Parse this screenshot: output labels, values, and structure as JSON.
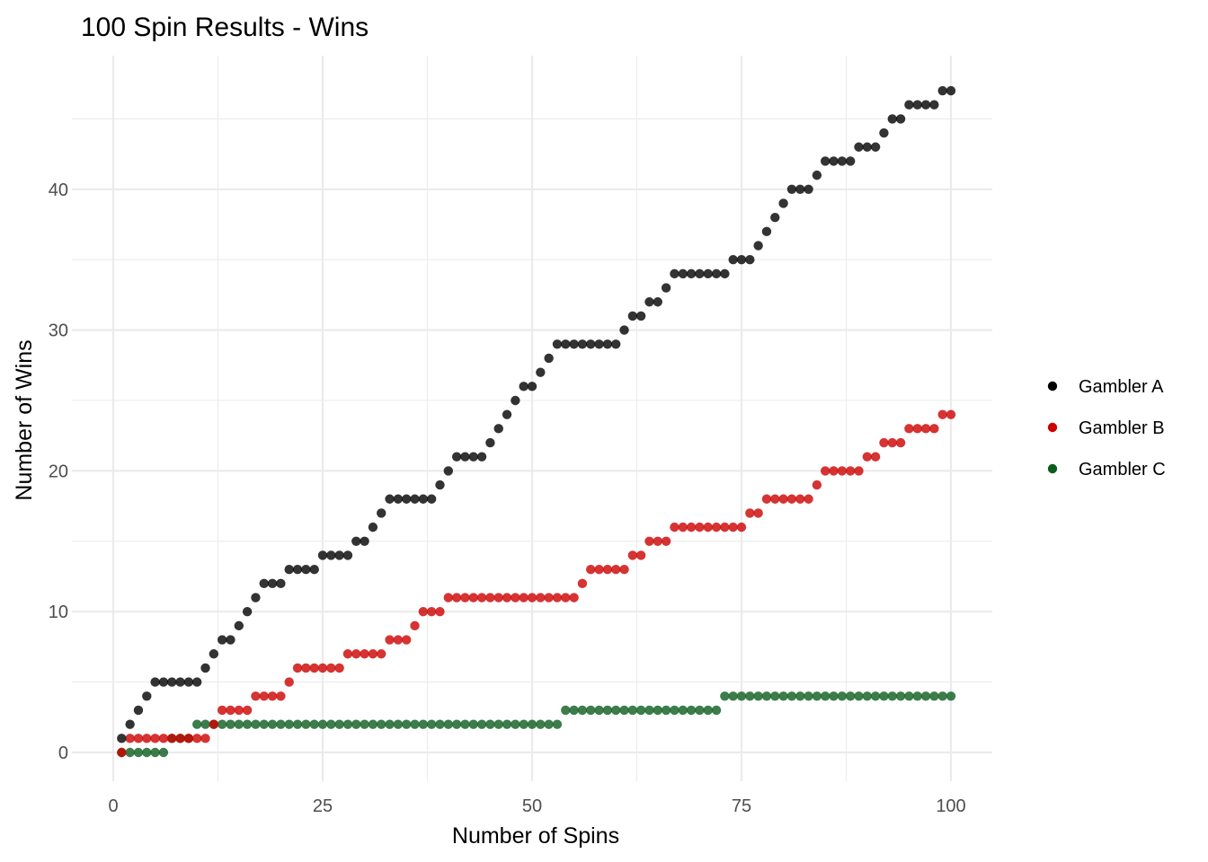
{
  "chart_data": {
    "type": "scatter",
    "title": "100 Spin Results - Wins",
    "xlabel": "Number of Spins",
    "ylabel": "Number of Wins",
    "xlim": [
      0,
      100
    ],
    "ylim": [
      0,
      47
    ],
    "x_ticks": [
      0,
      25,
      50,
      75,
      100
    ],
    "y_ticks": [
      0,
      10,
      20,
      30,
      40
    ],
    "grid": true,
    "legend": "right",
    "x": [
      1,
      2,
      3,
      4,
      5,
      6,
      7,
      8,
      9,
      10,
      11,
      12,
      13,
      14,
      15,
      16,
      17,
      18,
      19,
      20,
      21,
      22,
      23,
      24,
      25,
      26,
      27,
      28,
      29,
      30,
      31,
      32,
      33,
      34,
      35,
      36,
      37,
      38,
      39,
      40,
      41,
      42,
      43,
      44,
      45,
      46,
      47,
      48,
      49,
      50,
      51,
      52,
      53,
      54,
      55,
      56,
      57,
      58,
      59,
      60,
      61,
      62,
      63,
      64,
      65,
      66,
      67,
      68,
      69,
      70,
      71,
      72,
      73,
      74,
      75,
      76,
      77,
      78,
      79,
      80,
      81,
      82,
      83,
      84,
      85,
      86,
      87,
      88,
      89,
      90,
      91,
      92,
      93,
      94,
      95,
      96,
      97,
      98,
      99,
      100
    ],
    "series": [
      {
        "name": "Gambler A",
        "color": "#000000",
        "values": [
          1,
          2,
          3,
          4,
          5,
          5,
          5,
          5,
          5,
          5,
          6,
          7,
          8,
          8,
          9,
          10,
          11,
          12,
          12,
          12,
          13,
          13,
          13,
          13,
          14,
          14,
          14,
          14,
          15,
          15,
          16,
          17,
          18,
          18,
          18,
          18,
          18,
          18,
          19,
          20,
          21,
          21,
          21,
          21,
          22,
          23,
          24,
          25,
          26,
          26,
          27,
          28,
          29,
          29,
          29,
          29,
          29,
          29,
          29,
          29,
          30,
          31,
          31,
          32,
          32,
          33,
          34,
          34,
          34,
          34,
          34,
          34,
          34,
          35,
          35,
          35,
          36,
          37,
          38,
          39,
          40,
          40,
          40,
          41,
          42,
          42,
          42,
          42,
          43,
          43,
          43,
          44,
          45,
          45,
          46,
          46,
          46,
          46,
          47,
          47
        ]
      },
      {
        "name": "Gambler B",
        "color": "#cc0000",
        "values": [
          0,
          1,
          1,
          1,
          1,
          1,
          1,
          1,
          1,
          1,
          1,
          2,
          3,
          3,
          3,
          3,
          4,
          4,
          4,
          4,
          5,
          6,
          6,
          6,
          6,
          6,
          6,
          7,
          7,
          7,
          7,
          7,
          8,
          8,
          8,
          9,
          10,
          10,
          10,
          11,
          11,
          11,
          11,
          11,
          11,
          11,
          11,
          11,
          11,
          11,
          11,
          11,
          11,
          11,
          11,
          12,
          13,
          13,
          13,
          13,
          13,
          14,
          14,
          15,
          15,
          15,
          16,
          16,
          16,
          16,
          16,
          16,
          16,
          16,
          16,
          17,
          17,
          18,
          18,
          18,
          18,
          18,
          18,
          19,
          20,
          20,
          20,
          20,
          20,
          21,
          21,
          22,
          22,
          22,
          23,
          23,
          23,
          23,
          24,
          24
        ]
      },
      {
        "name": "Gambler C",
        "color": "#0b5d1e",
        "values": [
          0,
          0,
          0,
          0,
          0,
          0,
          1,
          1,
          1,
          2,
          2,
          2,
          2,
          2,
          2,
          2,
          2,
          2,
          2,
          2,
          2,
          2,
          2,
          2,
          2,
          2,
          2,
          2,
          2,
          2,
          2,
          2,
          2,
          2,
          2,
          2,
          2,
          2,
          2,
          2,
          2,
          2,
          2,
          2,
          2,
          2,
          2,
          2,
          2,
          2,
          2,
          2,
          2,
          3,
          3,
          3,
          3,
          3,
          3,
          3,
          3,
          3,
          3,
          3,
          3,
          3,
          3,
          3,
          3,
          3,
          3,
          3,
          4,
          4,
          4,
          4,
          4,
          4,
          4,
          4,
          4,
          4,
          4,
          4,
          4,
          4,
          4,
          4,
          4,
          4,
          4,
          4,
          4,
          4,
          4,
          4,
          4,
          4,
          4,
          4
        ]
      }
    ]
  }
}
